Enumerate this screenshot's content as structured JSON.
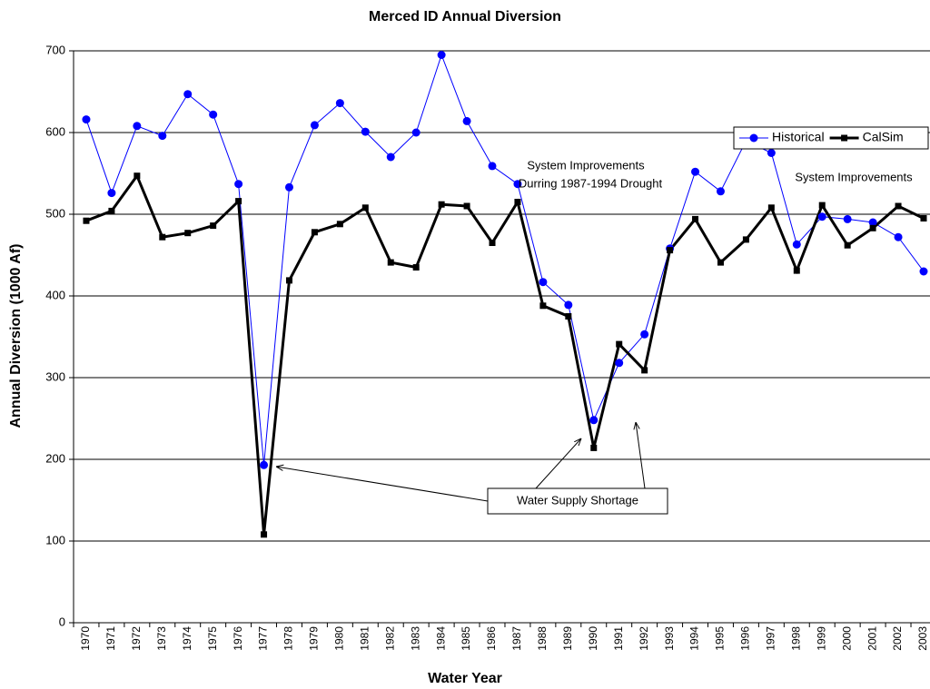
{
  "chart_data": {
    "type": "line",
    "title": "Merced ID Annual Diversion",
    "x_label": "Water Year",
    "y_label": "Annual Diversion (1000 Af)",
    "categories": [
      "1970",
      "1971",
      "1972",
      "1973",
      "1974",
      "1975",
      "1976",
      "1977",
      "1978",
      "1979",
      "1980",
      "1981",
      "1982",
      "1983",
      "1984",
      "1985",
      "1986",
      "1987",
      "1988",
      "1989",
      "1990",
      "1991",
      "1992",
      "1993",
      "1994",
      "1995",
      "1996",
      "1997",
      "1998",
      "1999",
      "2000",
      "2001",
      "2002",
      "2003"
    ],
    "series": [
      {
        "name": "Historical",
        "color": "#0000ff",
        "marker": "circle",
        "values": [
          616,
          526,
          608,
          596,
          647,
          622,
          537,
          193,
          533,
          609,
          636,
          601,
          570,
          600,
          695,
          614,
          559,
          537,
          417,
          389,
          248,
          318,
          353,
          458,
          552,
          528,
          590,
          575,
          463,
          497,
          494,
          490,
          472,
          430
        ]
      },
      {
        "name": "CalSim",
        "color": "#000000",
        "marker": "square",
        "values": [
          492,
          504,
          547,
          472,
          477,
          486,
          516,
          108,
          419,
          478,
          488,
          508,
          441,
          435,
          512,
          510,
          465,
          515,
          388,
          375,
          214,
          341,
          309,
          456,
          494,
          441,
          469,
          508,
          431,
          511,
          462,
          483,
          510,
          495
        ]
      }
    ],
    "ylim": [
      0,
      700
    ],
    "yticks": [
      0,
      100,
      200,
      300,
      400,
      500,
      600,
      700
    ],
    "grid": true,
    "legend": "upper right",
    "annotations": {
      "drought": [
        "System Improvements",
        "Durring 1987-1994 Drought"
      ],
      "late": "System Improvements",
      "shortage": "Water Supply Shortage"
    }
  }
}
